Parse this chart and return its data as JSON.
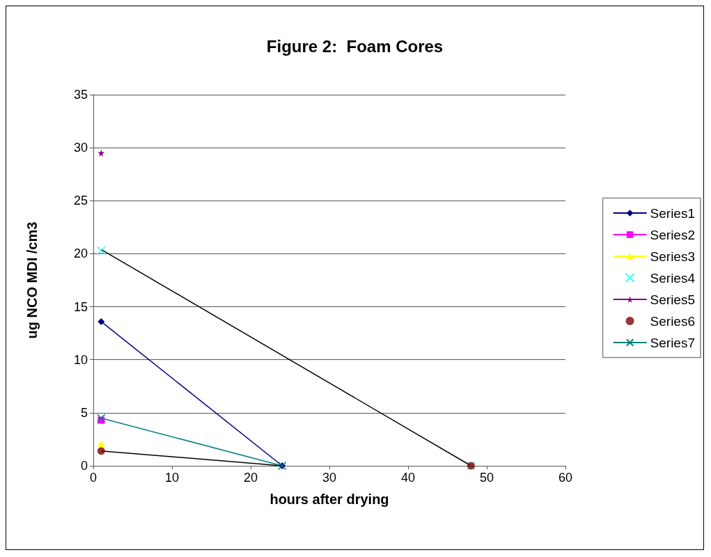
{
  "chart_data": {
    "type": "line",
    "title": "Figure 2:  Foam Cores",
    "xlabel": "hours after drying",
    "ylabel": "ug NCO MDI /cm3",
    "xlim": [
      0,
      60
    ],
    "xticks": [
      0,
      10,
      20,
      30,
      40,
      50,
      60
    ],
    "ylim": [
      0,
      35
    ],
    "yticks": [
      0,
      5,
      10,
      15,
      20,
      25,
      30,
      35
    ],
    "grid": "y",
    "legend": "right",
    "series": [
      {
        "name": "Series1",
        "color": "#000080",
        "marker": "diamond",
        "x": [
          1,
          24
        ],
        "values": [
          13.6,
          0
        ]
      },
      {
        "name": "Series2",
        "color": "#ff00ff",
        "marker": "square",
        "x": [
          1
        ],
        "values": [
          4.3
        ]
      },
      {
        "name": "Series3",
        "color": "#ffff00",
        "marker": "triangle",
        "x": [
          1
        ],
        "values": [
          2.1
        ]
      },
      {
        "name": "Series4",
        "color": "#00ffff",
        "marker": "cross",
        "type": "scatter",
        "x": [
          1,
          48
        ],
        "values": [
          20.3,
          0
        ]
      },
      {
        "name": "Series5",
        "color": "#800080",
        "marker": "star",
        "x": [
          1
        ],
        "values": [
          29.5
        ]
      },
      {
        "name": "Series6",
        "color": "#800000",
        "marker": "circle",
        "type": "scatter",
        "x": [
          1,
          48
        ],
        "values": [
          1.4,
          0
        ]
      },
      {
        "name": "Series7",
        "color": "#008080",
        "marker": "cross",
        "x": [
          1,
          24
        ],
        "values": [
          4.5,
          0
        ]
      },
      {
        "color": "#000000",
        "marker": "none",
        "x": [
          1,
          48
        ],
        "values": [
          20.4,
          0
        ]
      },
      {
        "color": "#000000",
        "marker": "none",
        "x": [
          1,
          24
        ],
        "values": [
          1.4,
          0
        ]
      }
    ]
  }
}
